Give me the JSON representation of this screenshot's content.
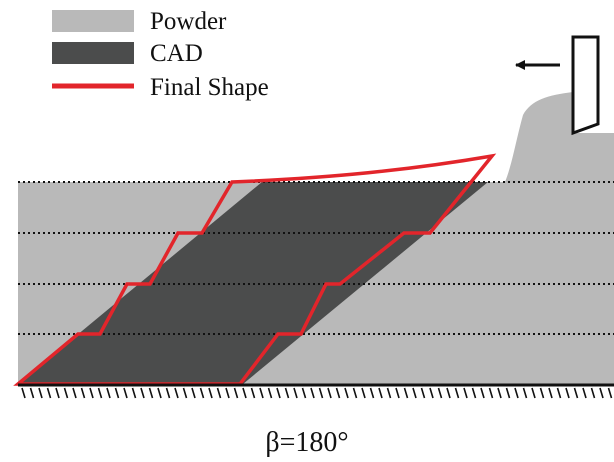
{
  "legend": {
    "items": [
      {
        "id": "powder",
        "label": "Powder",
        "kind": "fill",
        "color": "#b9b9b9"
      },
      {
        "id": "cad",
        "label": "CAD",
        "kind": "fill",
        "color": "#4b4c4c"
      },
      {
        "id": "final",
        "label": "Final Shape",
        "kind": "line",
        "color": "#e2252b"
      }
    ]
  },
  "caption": "β=180°",
  "colors": {
    "powder": "#b9b9b9",
    "cad": "#4b4c4c",
    "final_shape": "#e2252b",
    "layer_line": "#111111",
    "substrate": "#111111",
    "recoater": "#111111",
    "background": "#ffffff"
  },
  "icons": {
    "direction_arrow": "arrow-left-icon",
    "recoater": "recoater-blade-icon",
    "substrate": "hatched-ground-icon"
  }
}
